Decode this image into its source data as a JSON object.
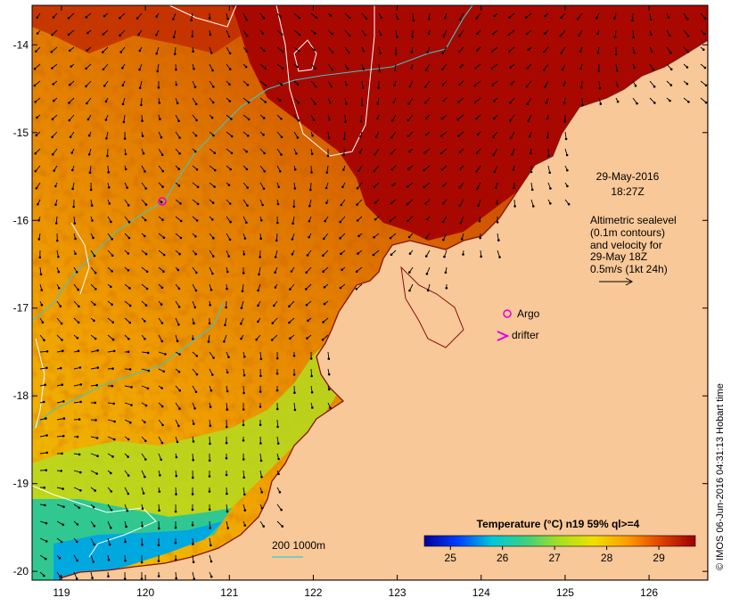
{
  "map": {
    "lon_ticks": [
      "119",
      "120",
      "121",
      "122",
      "123",
      "124",
      "125",
      "126"
    ],
    "lat_ticks": [
      "-14",
      "-15",
      "-16",
      "-17",
      "-18",
      "-19",
      "-20"
    ],
    "lon_range": [
      118.65,
      126.7
    ],
    "lat_range": [
      -20.1,
      -13.55
    ]
  },
  "timestamp": {
    "date": "29-May-2016",
    "time": "18:27Z"
  },
  "altimetry_note": {
    "lines": [
      "Altimetric sealevel",
      "(0.1m contours)",
      "and velocity for",
      "29-May 18Z",
      "0.5m/s (1kt 24h)"
    ]
  },
  "legend": {
    "argo": "Argo",
    "drifter": "drifter",
    "argo_color": "#e000e0"
  },
  "bathymetry_scale": {
    "label": "200  1000m",
    "color": "#3cc8c8"
  },
  "colorbar": {
    "title": "Temperature (°C) n19 59% ql>=4",
    "ticks": [
      "25",
      "26",
      "27",
      "28",
      "29"
    ],
    "range": [
      24.5,
      29.7
    ],
    "stops": [
      "#00009a",
      "#0040ff",
      "#00c8d8",
      "#3cd080",
      "#a8e020",
      "#f0e000",
      "#ff9c00",
      "#e04000",
      "#9c0000"
    ]
  },
  "credit": "© IMOS 06-Jun-2016 04:31:13 Hobart time",
  "colors": {
    "land": "#f8c898",
    "cold_shelf": "#00b0d0",
    "warm": "#c01000"
  }
}
